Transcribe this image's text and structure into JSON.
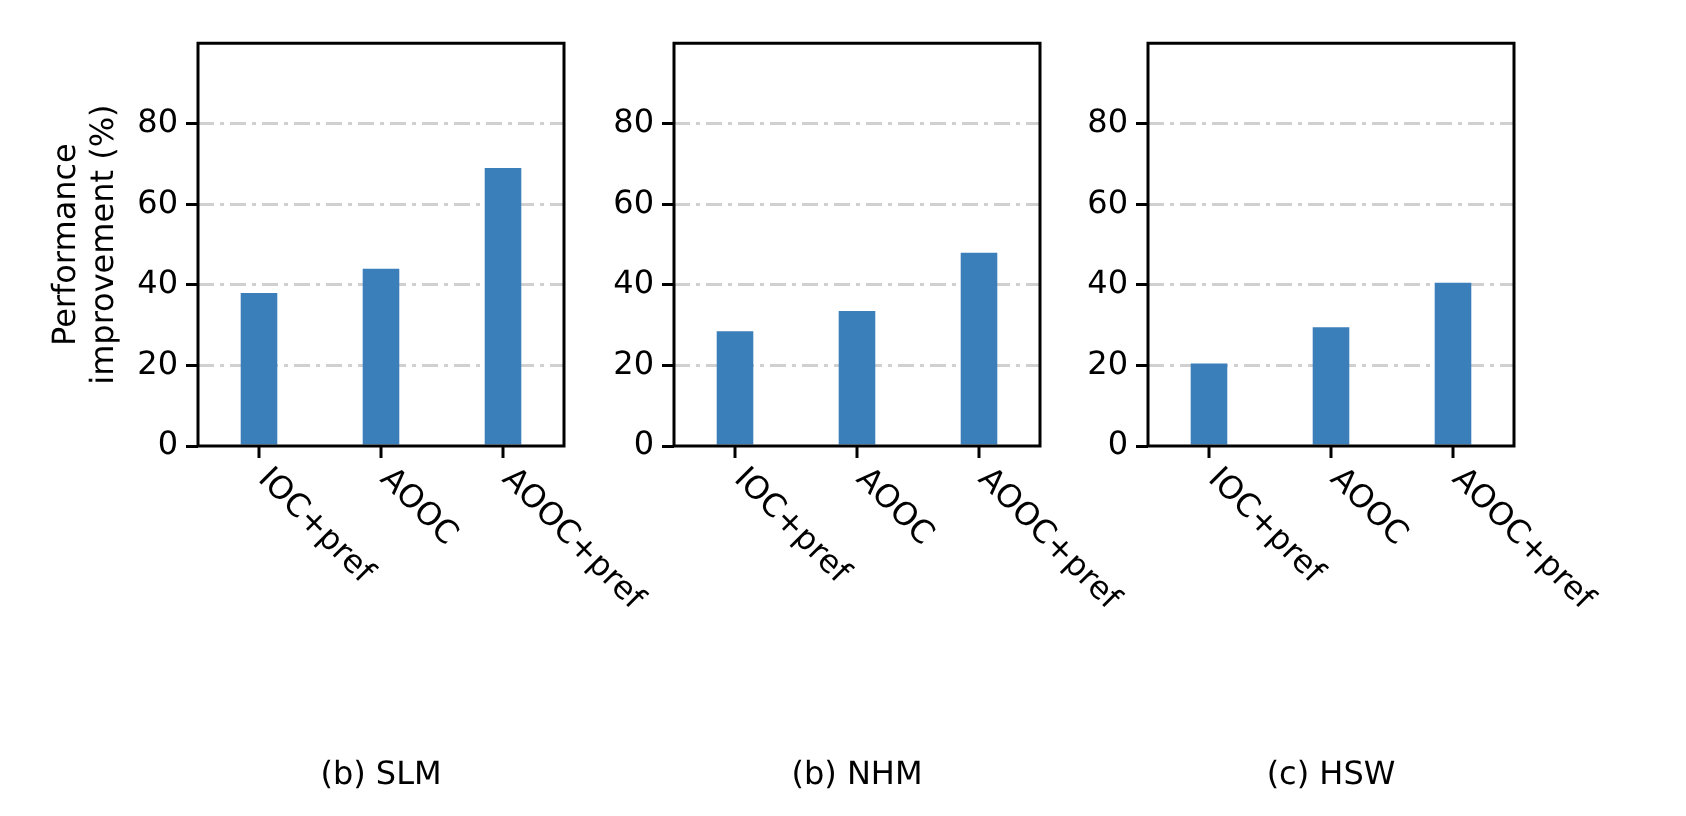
{
  "chart_data": [
    {
      "type": "bar",
      "ylabel": "Performance\nimprovement (%)",
      "xlabel": "(b) SLM",
      "categories": [
        "IOC+pref",
        "AOOC",
        "AOOC+pref"
      ],
      "values": [
        38,
        44,
        69
      ],
      "color": "#3a7fb9",
      "ylim": [
        0,
        100
      ],
      "yticks": [
        0,
        20,
        40,
        60,
        80
      ],
      "grid": "y"
    },
    {
      "type": "bar",
      "xlabel": "(b) NHM",
      "categories": [
        "IOC+pref",
        "AOOC",
        "AOOC+pref"
      ],
      "values": [
        28.5,
        33.5,
        48
      ],
      "color": "#3a7fb9",
      "ylim": [
        0,
        100
      ],
      "yticks": [
        0,
        20,
        40,
        60,
        80
      ],
      "grid": "y"
    },
    {
      "type": "bar",
      "xlabel": "(c) HSW",
      "categories": [
        "IOC+pref",
        "AOOC",
        "AOOC+pref"
      ],
      "values": [
        20.5,
        29.5,
        40.5
      ],
      "color": "#3a7fb9",
      "ylim": [
        0,
        100
      ],
      "yticks": [
        0,
        20,
        40,
        60,
        80
      ],
      "grid": "y"
    }
  ]
}
